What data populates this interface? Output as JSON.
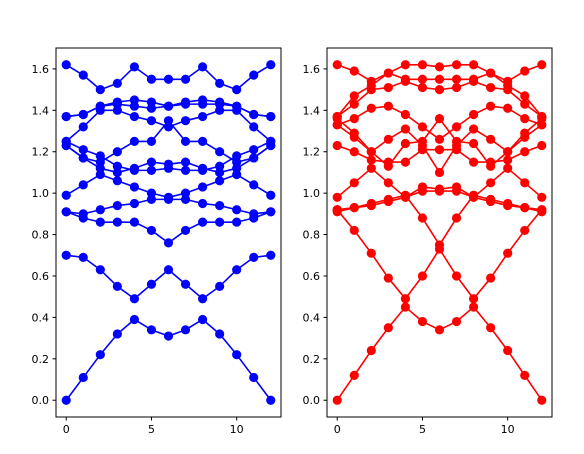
{
  "chart_data": [
    {
      "type": "line",
      "color": "#0000ff",
      "xlim": [
        -0.6,
        12.6
      ],
      "ylim": [
        -0.081,
        1.701
      ],
      "xticks": [
        0,
        5,
        10
      ],
      "yticks": [
        0.0,
        0.2,
        0.4,
        0.6,
        0.8,
        1.0,
        1.2,
        1.4,
        1.6
      ],
      "x": [
        0,
        1,
        2,
        3,
        4,
        5,
        6,
        7,
        8,
        9,
        10,
        11,
        12
      ],
      "series": [
        {
          "values": [
            0.0,
            0.11,
            0.22,
            0.32,
            0.39,
            0.34,
            0.31,
            0.34,
            0.39,
            0.32,
            0.22,
            0.11,
            0.0
          ]
        },
        {
          "values": [
            0.7,
            0.69,
            0.63,
            0.55,
            0.49,
            0.56,
            0.63,
            0.56,
            0.49,
            0.55,
            0.63,
            0.69,
            0.7
          ]
        },
        {
          "values": [
            0.91,
            0.88,
            0.86,
            0.86,
            0.86,
            0.82,
            0.76,
            0.82,
            0.86,
            0.86,
            0.86,
            0.88,
            0.91
          ]
        },
        {
          "values": [
            0.91,
            0.9,
            0.92,
            0.94,
            0.95,
            0.97,
            0.97,
            0.97,
            0.95,
            0.94,
            0.92,
            0.9,
            0.91
          ]
        },
        {
          "values": [
            0.99,
            1.04,
            1.09,
            1.06,
            1.03,
            1.0,
            0.98,
            1.0,
            1.03,
            1.06,
            1.09,
            1.04,
            0.99
          ]
        },
        {
          "values": [
            1.23,
            1.17,
            1.12,
            1.1,
            1.12,
            1.15,
            1.14,
            1.15,
            1.12,
            1.1,
            1.12,
            1.17,
            1.23
          ]
        },
        {
          "values": [
            1.25,
            1.21,
            1.18,
            1.13,
            1.11,
            1.11,
            1.12,
            1.11,
            1.11,
            1.13,
            1.18,
            1.21,
            1.25
          ]
        },
        {
          "values": [
            1.25,
            1.32,
            1.4,
            1.4,
            1.37,
            1.35,
            1.32,
            1.35,
            1.37,
            1.4,
            1.4,
            1.32,
            1.25
          ]
        },
        {
          "values": [
            1.23,
            1.17,
            1.15,
            1.2,
            1.25,
            1.25,
            1.35,
            1.25,
            1.25,
            1.2,
            1.15,
            1.17,
            1.23
          ]
        },
        {
          "values": [
            1.37,
            1.38,
            1.42,
            1.44,
            1.45,
            1.44,
            1.42,
            1.44,
            1.45,
            1.44,
            1.42,
            1.38,
            1.37
          ]
        },
        {
          "values": [
            1.37,
            1.38,
            1.42,
            1.43,
            1.42,
            1.41,
            1.42,
            1.43,
            1.43,
            1.43,
            1.42,
            1.38,
            1.37
          ]
        },
        {
          "values": [
            1.62,
            1.57,
            1.5,
            1.53,
            1.61,
            1.55,
            1.55,
            1.55,
            1.61,
            1.53,
            1.5,
            1.57,
            1.62
          ]
        }
      ]
    },
    {
      "type": "line",
      "color": "#ff0000",
      "xlim": [
        -0.6,
        12.6
      ],
      "ylim": [
        -0.081,
        1.701
      ],
      "xticks": [
        0,
        5,
        10
      ],
      "yticks": [
        0.0,
        0.2,
        0.4,
        0.6,
        0.8,
        1.0,
        1.2,
        1.4,
        1.6
      ],
      "x": [
        0,
        1,
        2,
        3,
        4,
        5,
        6,
        7,
        8,
        9,
        10,
        11,
        12
      ],
      "series": [
        {
          "values": [
            0.0,
            0.12,
            0.24,
            0.35,
            0.45,
            0.38,
            0.34,
            0.38,
            0.45,
            0.35,
            0.24,
            0.12,
            0.0
          ]
        },
        {
          "values": [
            0.92,
            0.82,
            0.71,
            0.59,
            0.49,
            0.6,
            0.73,
            0.6,
            0.49,
            0.59,
            0.71,
            0.82,
            0.92
          ]
        },
        {
          "values": [
            0.92,
            0.93,
            0.95,
            0.97,
            0.99,
            0.88,
            0.75,
            0.88,
            0.99,
            0.97,
            0.95,
            0.93,
            0.92
          ]
        },
        {
          "values": [
            0.98,
            1.05,
            1.12,
            1.05,
            0.98,
            1.03,
            1.02,
            1.03,
            0.98,
            1.05,
            1.12,
            1.05,
            0.98
          ]
        },
        {
          "values": [
            0.91,
            0.93,
            0.94,
            0.96,
            0.98,
            1.01,
            1.01,
            1.01,
            0.98,
            0.96,
            0.94,
            0.93,
            0.91
          ]
        },
        {
          "values": [
            1.23,
            1.2,
            1.16,
            1.15,
            1.15,
            1.21,
            1.21,
            1.21,
            1.15,
            1.15,
            1.16,
            1.2,
            1.23
          ]
        },
        {
          "values": [
            1.36,
            1.29,
            1.2,
            1.13,
            1.24,
            1.25,
            1.36,
            1.25,
            1.24,
            1.13,
            1.2,
            1.29,
            1.36
          ]
        },
        {
          "values": [
            1.33,
            1.36,
            1.41,
            1.42,
            1.38,
            1.32,
            1.26,
            1.32,
            1.38,
            1.42,
            1.41,
            1.36,
            1.33
          ]
        },
        {
          "values": [
            1.33,
            1.27,
            1.2,
            1.26,
            1.31,
            1.23,
            1.1,
            1.23,
            1.31,
            1.26,
            1.2,
            1.27,
            1.33
          ]
        },
        {
          "values": [
            1.37,
            1.43,
            1.5,
            1.51,
            1.54,
            1.51,
            1.5,
            1.51,
            1.54,
            1.51,
            1.5,
            1.43,
            1.37
          ]
        },
        {
          "values": [
            1.62,
            1.59,
            1.54,
            1.58,
            1.62,
            1.62,
            1.61,
            1.62,
            1.62,
            1.58,
            1.54,
            1.59,
            1.62
          ]
        },
        {
          "values": [
            1.37,
            1.47,
            1.52,
            1.58,
            1.55,
            1.55,
            1.55,
            1.55,
            1.55,
            1.58,
            1.52,
            1.47,
            1.37
          ]
        }
      ]
    }
  ]
}
